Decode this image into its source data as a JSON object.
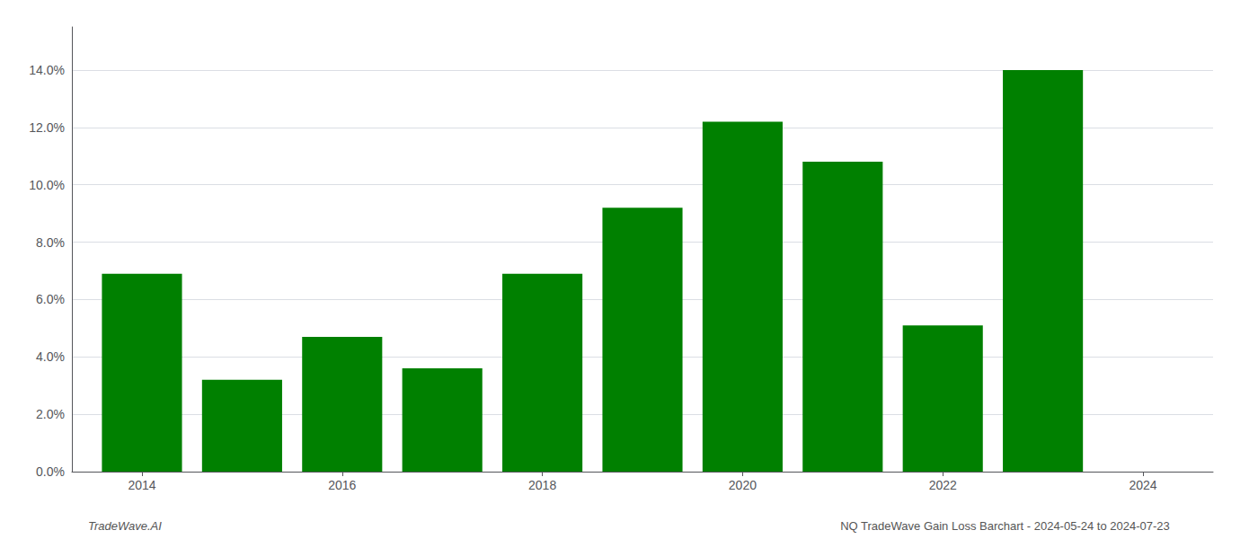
{
  "chart_data": {
    "type": "bar",
    "x": [
      2014,
      2015,
      2016,
      2017,
      2018,
      2019,
      2020,
      2021,
      2022,
      2023
    ],
    "values": [
      0.069,
      0.032,
      0.047,
      0.036,
      0.069,
      0.092,
      0.122,
      0.108,
      0.051,
      0.14
    ],
    "color": "#008000",
    "xlim": [
      2013.3,
      2024.7
    ],
    "xticks": [
      2014,
      2016,
      2018,
      2020,
      2022,
      2024
    ],
    "ylim": [
      0,
      0.155
    ],
    "yticks": [
      {
        "value": 0.0,
        "label": "0.0%"
      },
      {
        "value": 0.02,
        "label": "2.0%"
      },
      {
        "value": 0.04,
        "label": "4.0%"
      },
      {
        "value": 0.06,
        "label": "6.0%"
      },
      {
        "value": 0.08,
        "label": "8.0%"
      },
      {
        "value": 0.1,
        "label": "10.0%"
      },
      {
        "value": 0.12,
        "label": "12.0%"
      },
      {
        "value": 0.14,
        "label": "14.0%"
      }
    ],
    "grid": true,
    "annotations": [
      "TradeWave.AI",
      "NQ TradeWave Gain Loss Barchart - 2024-05-24 to 2024-07-23"
    ]
  }
}
